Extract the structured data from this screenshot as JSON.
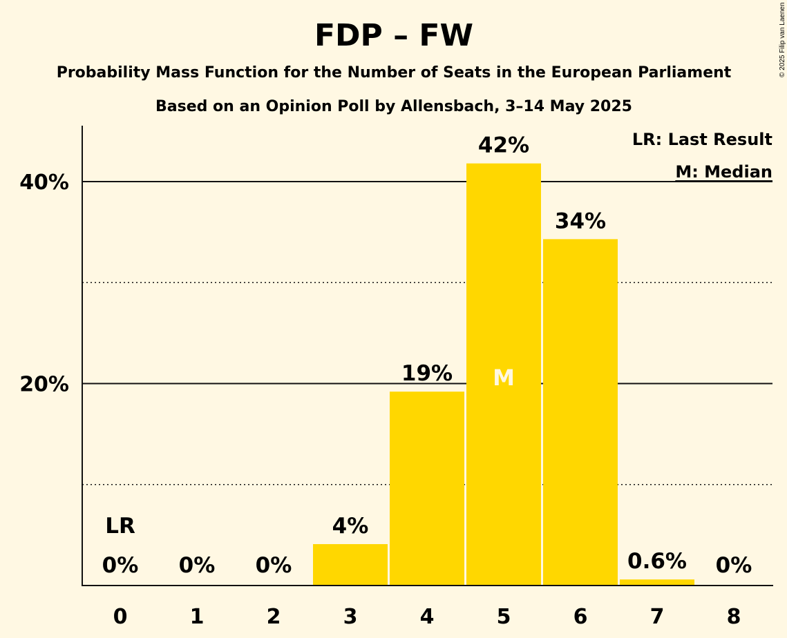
{
  "chart_data": {
    "type": "bar",
    "title": "FDP – FW",
    "subtitle": "Probability Mass Function for the Number of Seats in the European Parliament",
    "subtitle2": "Based on an Opinion Poll by Allensbach, 3–14 May 2025",
    "copyright": "© 2025 Filip van Laenen",
    "categories": [
      "0",
      "1",
      "2",
      "3",
      "4",
      "5",
      "6",
      "7",
      "8"
    ],
    "values": [
      0,
      0,
      0,
      4.1,
      19.2,
      41.8,
      34.3,
      0.6,
      0
    ],
    "value_labels": [
      "0%",
      "0%",
      "0%",
      "4%",
      "19%",
      "42%",
      "34%",
      "0.6%",
      "0%"
    ],
    "ylim": [
      0,
      45
    ],
    "yticks": [
      20,
      40
    ],
    "ytick_labels": [
      "20%",
      "40%"
    ],
    "minor_gridlines": [
      10,
      30
    ],
    "bar_color": "#ffd700",
    "last_result_index": 0,
    "last_result_marker": "LR",
    "median_index": 5,
    "median_marker": "M",
    "legend": [
      "LR: Last Result",
      "M: Median"
    ],
    "legend_position": "top-right"
  }
}
